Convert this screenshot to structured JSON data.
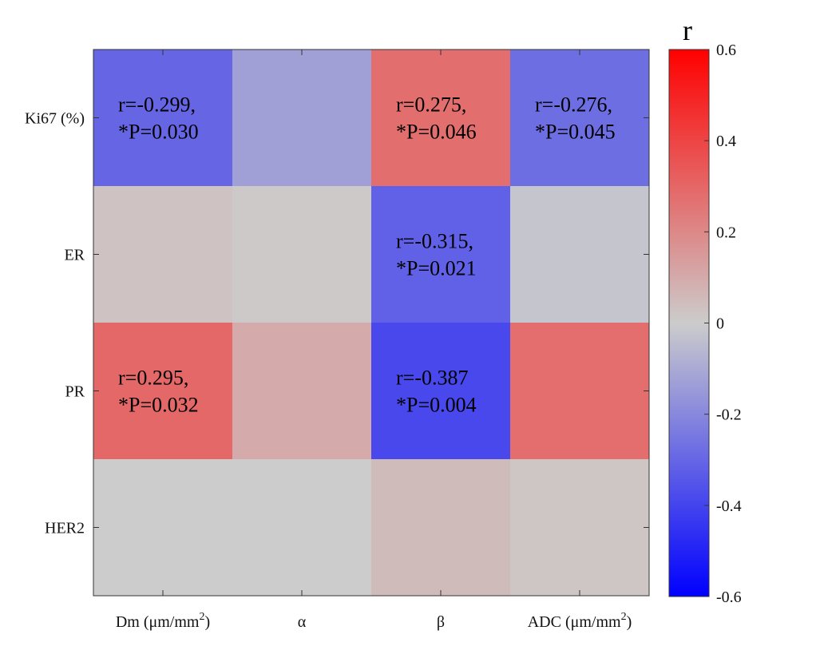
{
  "chart_data": {
    "type": "heatmap",
    "title": "",
    "rows": [
      "Ki67 (%)",
      "ER",
      "PR",
      "HER2"
    ],
    "columns": [
      {
        "base": "Dm (μm/mm",
        "sup": "2",
        "tail": ")"
      },
      {
        "base": "α",
        "sup": "",
        "tail": ""
      },
      {
        "base": "β",
        "sup": "",
        "tail": ""
      },
      {
        "base": "ADC (μm/mm",
        "sup": "2",
        "tail": ")"
      }
    ],
    "values": [
      [
        -0.299,
        -0.13,
        0.275,
        -0.276
      ],
      [
        0.03,
        0.01,
        -0.315,
        -0.02
      ],
      [
        0.295,
        0.1,
        -0.387,
        0.28
      ],
      [
        0.0,
        0.0,
        0.05,
        0.02
      ]
    ],
    "annotations": [
      {
        "row": 0,
        "col": 0,
        "line1": "r=-0.299,",
        "line2": "*P=0.030"
      },
      {
        "row": 0,
        "col": 2,
        "line1": "r=0.275,",
        "line2": "*P=0.046"
      },
      {
        "row": 0,
        "col": 3,
        "line1": "r=-0.276,",
        "line2": "*P=0.045"
      },
      {
        "row": 1,
        "col": 2,
        "line1": "r=-0.315,",
        "line2": "*P=0.021"
      },
      {
        "row": 2,
        "col": 0,
        "line1": "r=0.295,",
        "line2": "*P=0.032"
      },
      {
        "row": 2,
        "col": 2,
        "line1": "r=-0.387",
        "line2": "*P=0.004"
      }
    ],
    "colorbar": {
      "title": "r",
      "min": -0.6,
      "max": 0.6,
      "ticks": [
        0.6,
        0.4,
        0.2,
        0,
        -0.2,
        -0.4,
        -0.6
      ],
      "tick_labels": [
        "0.6",
        "0.4",
        "0.2",
        "0",
        "-0.2",
        "-0.4",
        "-0.6"
      ],
      "low_color": "#0000ff",
      "mid_color": "#cccccc",
      "high_color": "#ff0000"
    }
  }
}
